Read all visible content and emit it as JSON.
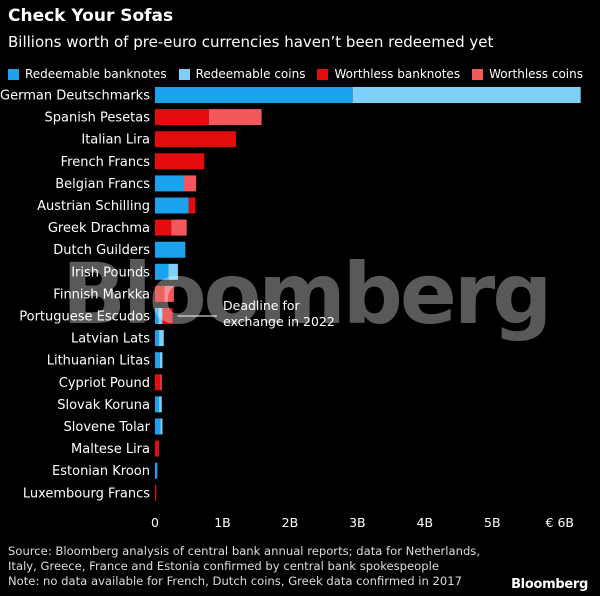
{
  "header": {
    "title": "Check Your Sofas",
    "subtitle": "Billions worth of pre-euro currencies haven’t been redeemed yet"
  },
  "legend": [
    {
      "label": "Redeemable banknotes",
      "color": "#1ba3f0"
    },
    {
      "label": "Redeemable coins",
      "color": "#7fd0f8"
    },
    {
      "label": "Worthless banknotes",
      "color": "#e30d0d"
    },
    {
      "label": "Worthless coins",
      "color": "#f2585c"
    }
  ],
  "annotation": {
    "line1": "Deadline for",
    "line2": "exchange in 2022"
  },
  "footer": {
    "line1": "Source: Bloomberg analysis of central bank annual reports; data for Netherlands,",
    "line2": "Italy, Greece, France and Estonia confirmed by central bank spokespeople",
    "line3": "Note: no data available for French, Dutch coins, Greek data confirmed in 2017"
  },
  "brand": "Bloomberg",
  "watermark": "Bloomberg",
  "chart_data": {
    "type": "bar",
    "orientation": "horizontal",
    "stacked": true,
    "categories": [
      "German Deutschmarks",
      "Spanish Pesetas",
      "Italian Lira",
      "French Francs",
      "Belgian Francs",
      "Austrian Schilling",
      "Greek Drachma",
      "Dutch Guilders",
      "Irish Pounds",
      "Finnish Markka",
      "Portuguese Escudos",
      "Latvian Lats",
      "Lithuanian Litas",
      "Cypriot Pound",
      "Slovak Koruna",
      "Slovene Tolar",
      "Maltese Lira",
      "Estonian Kroon",
      "Luxembourg Francs"
    ],
    "series": [
      {
        "name": "Redeemable banknotes",
        "color": "#1ba3f0",
        "values": [
          2.93,
          0,
          0,
          0,
          0.43,
          0.5,
          0,
          0.45,
          0.2,
          0,
          0.05,
          0.06,
          0.07,
          0,
          0.06,
          0.08,
          0,
          0.035,
          0
        ]
      },
      {
        "name": "Redeemable coins",
        "color": "#7fd0f8",
        "values": [
          3.38,
          0,
          0,
          0,
          0,
          0,
          0,
          0,
          0.14,
          0,
          0.06,
          0.07,
          0.04,
          0,
          0.04,
          0.03,
          0,
          0,
          0
        ]
      },
      {
        "name": "Worthless banknotes",
        "color": "#e30d0d",
        "values": [
          0,
          0.8,
          1.2,
          0.73,
          0,
          0.1,
          0.24,
          0,
          0,
          0.14,
          0.15,
          0,
          0,
          0.08,
          0,
          0,
          0.06,
          0,
          0.02
        ]
      },
      {
        "name": "Worthless coins",
        "color": "#f2585c",
        "values": [
          0,
          0.78,
          0,
          0,
          0.18,
          0,
          0.23,
          0,
          0,
          0.14,
          0,
          0,
          0,
          0.02,
          0,
          0,
          0,
          0,
          0
        ]
      }
    ],
    "xlim": [
      0,
      6.3
    ],
    "xticks": [
      {
        "value": 0,
        "label": "0"
      },
      {
        "value": 1,
        "label": "1B"
      },
      {
        "value": 2,
        "label": "2B"
      },
      {
        "value": 3,
        "label": "3B"
      },
      {
        "value": 4,
        "label": "4B"
      },
      {
        "value": 5,
        "label": "5B"
      },
      {
        "value": 6,
        "label": "€ 6B"
      }
    ],
    "grid": false,
    "legend_position": "top",
    "title": "Check Your Sofas",
    "subtitle": "Billions worth of pre-euro currencies haven’t been redeemed yet",
    "annotation": "Deadline for exchange in 2022",
    "annotation_category": "Portuguese Escudos"
  }
}
